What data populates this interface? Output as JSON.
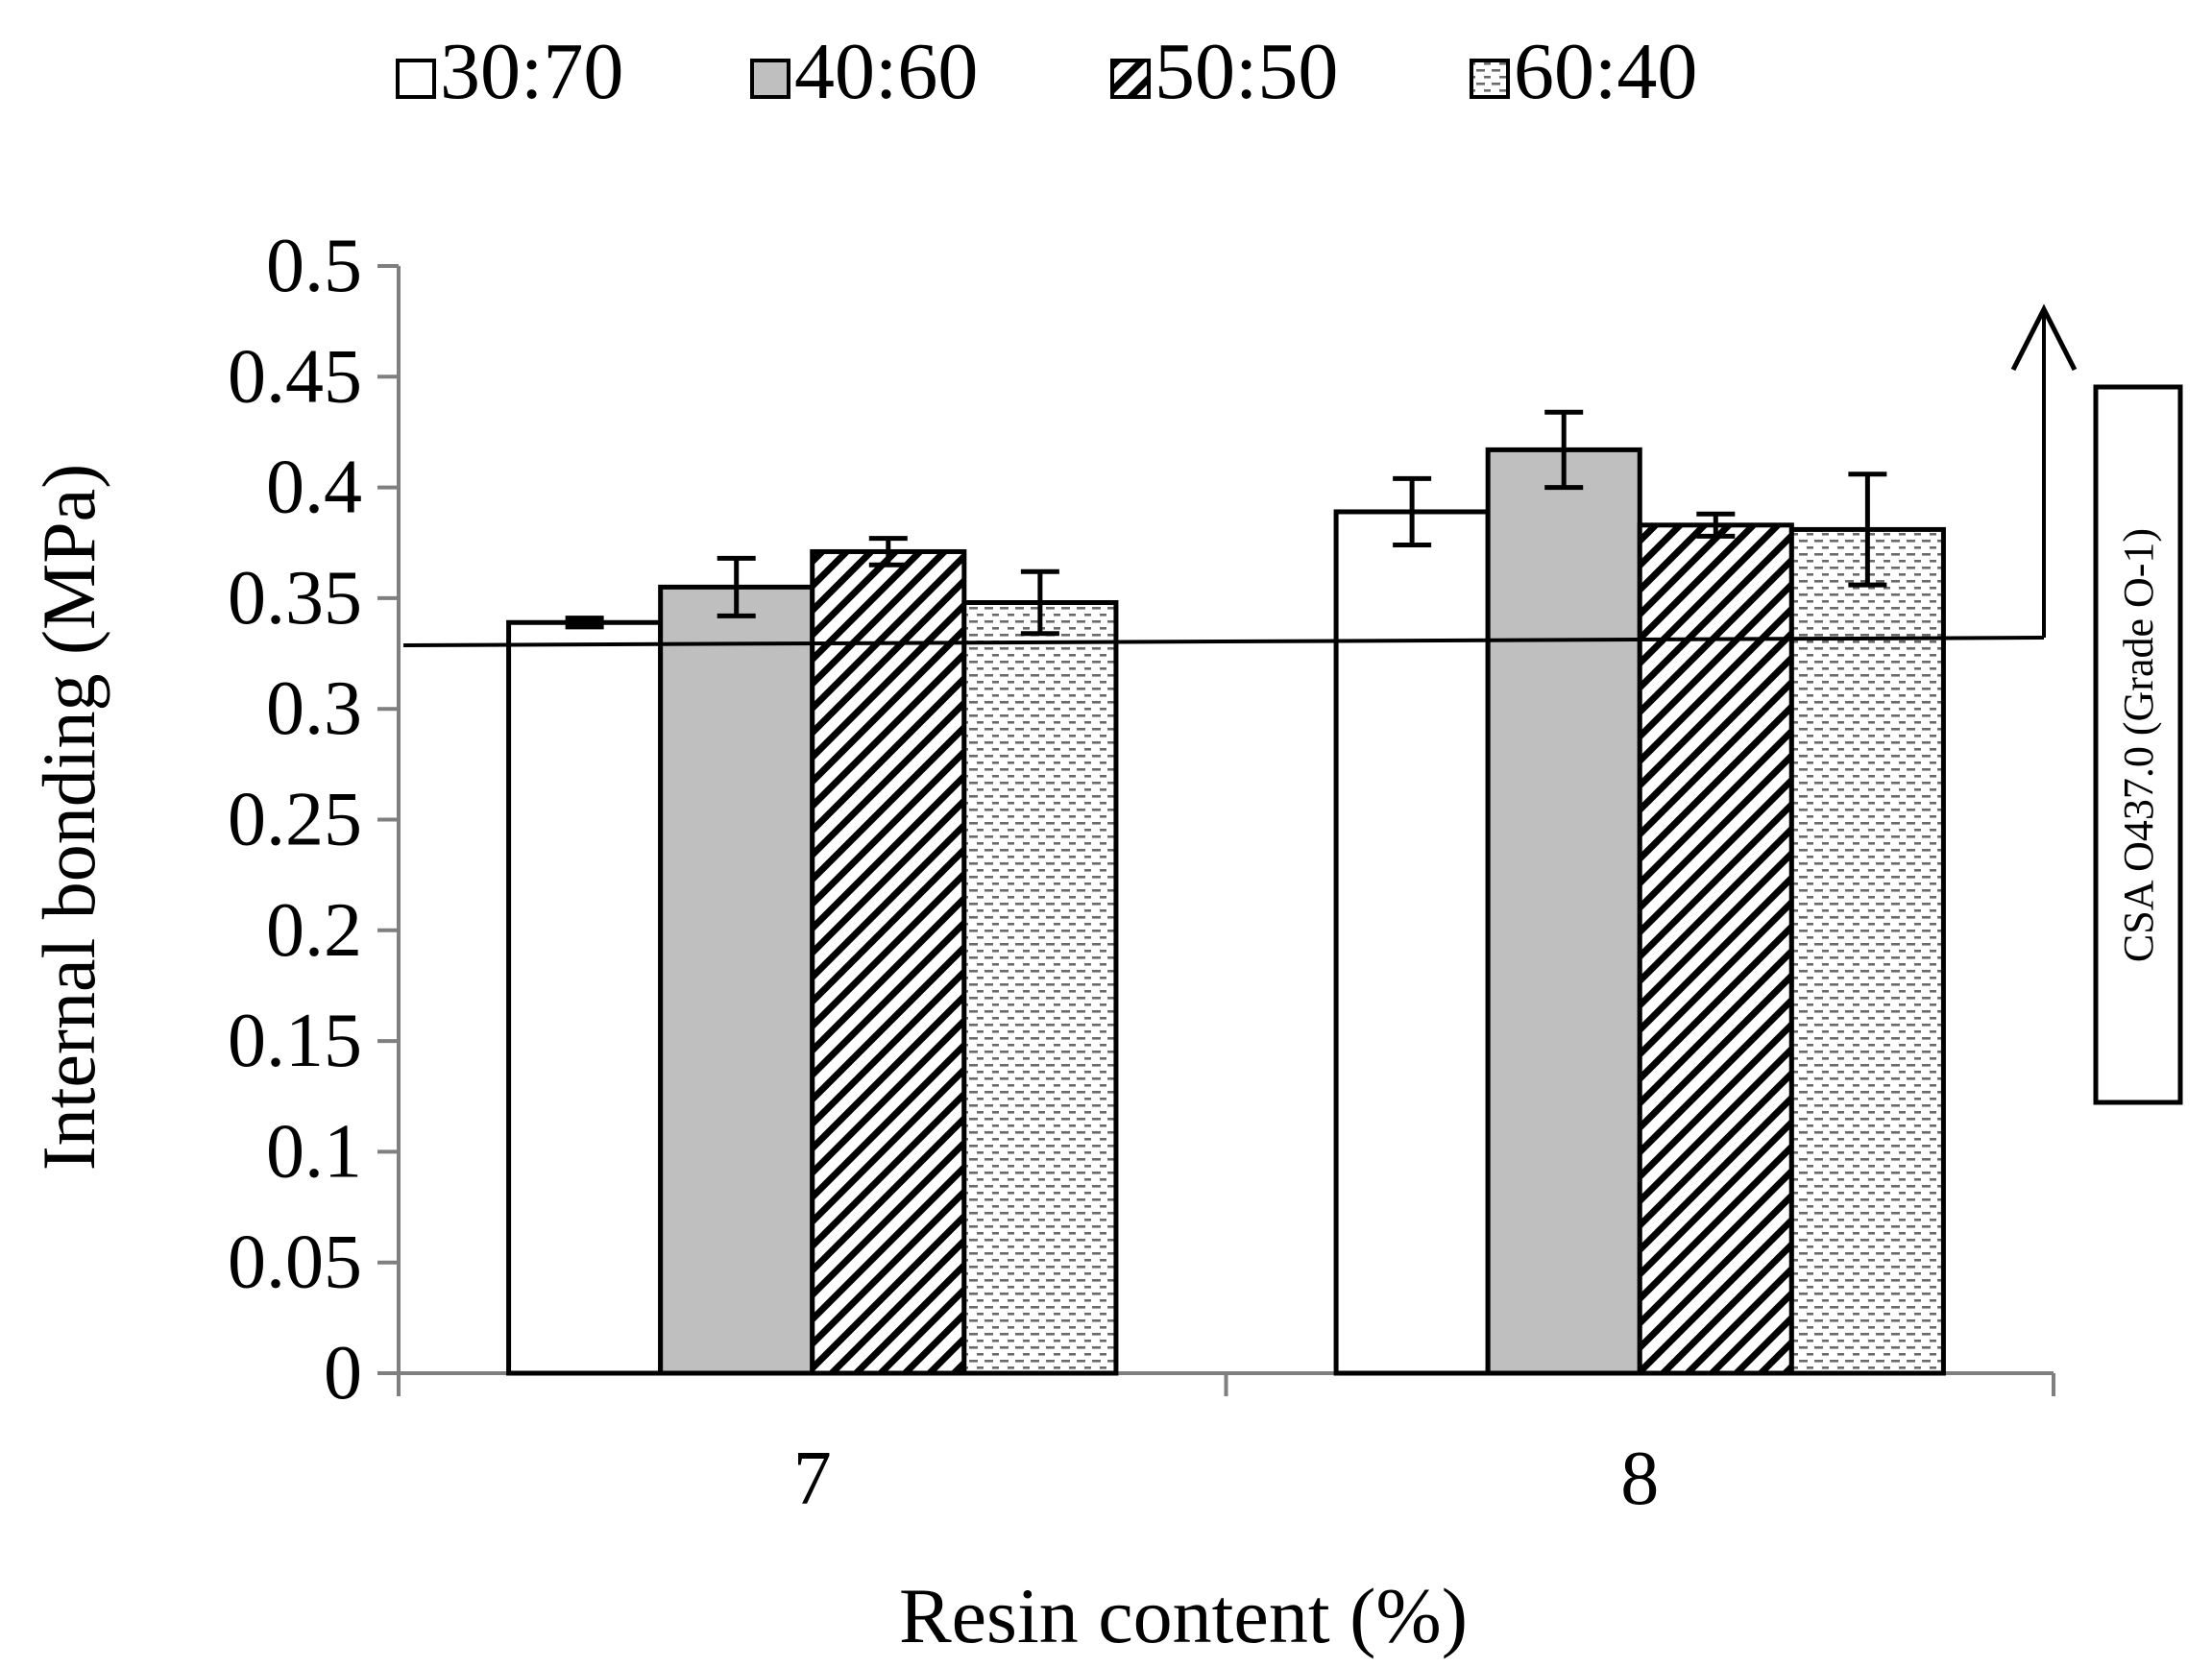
{
  "chart_data": {
    "type": "bar",
    "categories": [
      "7",
      "8"
    ],
    "series": [
      {
        "name": "30:70",
        "pattern": "none",
        "fill": "#ffffff",
        "values": [
          0.339,
          0.389
        ],
        "errors": [
          0.002,
          0.015
        ]
      },
      {
        "name": "40:60",
        "pattern": "none",
        "fill": "#bfbfbf",
        "values": [
          0.355,
          0.417
        ],
        "errors": [
          0.013,
          0.017
        ]
      },
      {
        "name": "50:50",
        "pattern": "diagonal-hatch",
        "fill": "#ffffff",
        "values": [
          0.371,
          0.383
        ],
        "errors": [
          0.006,
          0.005
        ]
      },
      {
        "name": "60:40",
        "pattern": "dashed-dots",
        "fill": "#ffffff",
        "values": [
          0.348,
          0.381
        ],
        "errors": [
          0.014,
          0.025
        ]
      }
    ],
    "xlabel": "Resin content (%)",
    "ylabel": "Internal bonding (MPa)",
    "ylim": [
      0,
      0.5
    ],
    "yticks": [
      "0",
      "0.05",
      "0.1",
      "0.15",
      "0.2",
      "0.25",
      "0.3",
      "0.35",
      "0.4",
      "0.45",
      "0.5"
    ],
    "grid": false,
    "legend_position": "top",
    "reference_line": {
      "value": 0.33,
      "label": "CSA O437.0 (Grade O-1)"
    }
  }
}
